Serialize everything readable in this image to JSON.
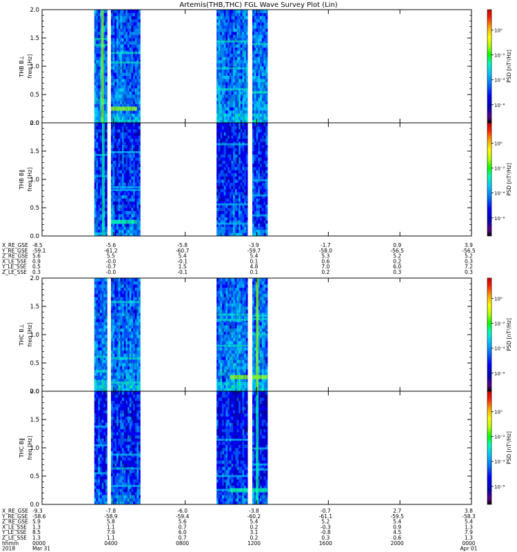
{
  "title": "Artemis(THB,THC) FGL Wave Survey Plot (Lin)",
  "chart_data": {
    "type": "heatmap",
    "xrange_hours": [
      0,
      24
    ],
    "ylim": [
      0,
      2.0
    ],
    "yticks": [
      0.0,
      0.5,
      1.0,
      1.5,
      2.0
    ],
    "ytick_labels": [
      "0.0",
      "0.5",
      "1.0",
      "1.5",
      "2.0"
    ],
    "colorbar": {
      "label": "PSD [nT²/Hz]",
      "scale": "log",
      "tick_labels": [
        "10⁰",
        "10⁻²",
        "10⁻⁴",
        "10⁻⁶"
      ]
    },
    "panels": [
      {
        "id": "thb-bperp",
        "probe": "THB B⊥",
        "ylabel": "freq [Hz]",
        "data_windows_hours": [
          [
            2.92,
            3.65
          ],
          [
            3.85,
            5.5
          ],
          [
            9.75,
            11.5
          ],
          [
            11.75,
            12.6
          ]
        ],
        "features": [
          {
            "type": "vertical-band",
            "hours": [
              3.3,
              3.45
            ],
            "level": "high"
          },
          {
            "type": "horizontal-line",
            "freq": 0.25,
            "hours": [
              3.85,
              5.3
            ],
            "level": "high"
          }
        ]
      },
      {
        "id": "thb-bpar",
        "probe": "THB B‖",
        "ylabel": "freq [Hz]",
        "data_windows_hours": [
          [
            2.92,
            3.65
          ],
          [
            3.85,
            5.5
          ],
          [
            9.75,
            11.5
          ],
          [
            11.75,
            12.6
          ]
        ],
        "features": [
          {
            "type": "vertical-band",
            "hours": [
              3.35,
              3.5
            ],
            "level": "medium"
          },
          {
            "type": "horizontal-line",
            "freq": 0.25,
            "hours": [
              3.85,
              5.3
            ],
            "level": "medium"
          }
        ]
      },
      {
        "id": "thc-bperp",
        "probe": "THC B⊥",
        "ylabel": "freq [Hz]",
        "data_windows_hours": [
          [
            2.92,
            3.65
          ],
          [
            3.85,
            5.5
          ],
          [
            9.75,
            11.5
          ],
          [
            11.75,
            12.6
          ]
        ],
        "features": [
          {
            "type": "vertical-band",
            "hours": [
              11.95,
              12.1
            ],
            "level": "high"
          },
          {
            "type": "horizontal-line",
            "freq": 0.25,
            "hours": [
              10.5,
              12.6
            ],
            "level": "high"
          }
        ]
      },
      {
        "id": "thc-bpar",
        "probe": "THC B‖",
        "ylabel": "freq [Hz]",
        "data_windows_hours": [
          [
            2.92,
            3.65
          ],
          [
            3.85,
            5.5
          ],
          [
            9.75,
            11.5
          ],
          [
            11.75,
            12.6
          ]
        ],
        "features": [
          {
            "type": "vertical-band",
            "hours": [
              11.95,
              12.1
            ],
            "level": "medium"
          },
          {
            "type": "horizontal-line",
            "freq": 0.25,
            "hours": [
              10.5,
              12.6
            ],
            "level": "medium"
          }
        ]
      }
    ],
    "ephemeris": [
      {
        "rows": [
          {
            "label": "X_RE_GSE",
            "values": [
              "-8.5",
              "-5.6",
              "-5.8",
              "-3.9",
              "-1.7",
              "0.9",
              "3.9"
            ]
          },
          {
            "label": "Y_RE_GSE",
            "values": [
              "-59.1",
              "-61.2",
              "-60.7",
              "-59.7",
              "-58.0",
              "-56.5",
              "-56.5"
            ]
          },
          {
            "label": "Z_RE_GSE",
            "values": [
              "5.6",
              "5.5",
              "5.4",
              "5.4",
              "5.3",
              "5.2",
              "5.2"
            ]
          },
          {
            "label": "X_LE_SSE",
            "values": [
              "0.9",
              "-0.0",
              "-0.1",
              "0.1",
              "0.6",
              "0.2",
              "0.3"
            ]
          },
          {
            "label": "Y_LE_SSE",
            "values": [
              "0.5",
              "-0.7",
              "1.5",
              "4.8",
              "7.0",
              "6.0",
              "7.2"
            ]
          },
          {
            "label": "Z_LE_SSE",
            "values": [
              "0.3",
              "-0.0",
              "-0.1",
              "0.1",
              "0.2",
              "0.3",
              "0.3"
            ]
          }
        ]
      },
      {
        "rows": [
          {
            "label": "X_RE_GSE",
            "values": [
              "-9.3",
              "-7.8",
              "-6.0",
              "-3.8",
              "-0.7",
              "2.7",
              "3.8"
            ]
          },
          {
            "label": "Y_RE_GSE",
            "values": [
              "-58.6",
              "-58.9",
              "-59.4",
              "-60.2",
              "-61.1",
              "-59.5",
              "-58.3"
            ]
          },
          {
            "label": "Z_RE_GSE",
            "values": [
              "5.9",
              "5.8",
              "5.6",
              "5.4",
              "5.2",
              "5.4",
              "5.4"
            ]
          },
          {
            "label": "X_LE_SSE",
            "values": [
              "1.3",
              "1.1",
              "0.7",
              "0.2",
              "-0.3",
              "0.9",
              "1.3"
            ]
          },
          {
            "label": "Y_LE_SSE",
            "values": [
              "8.5",
              "7.9",
              "6.0",
              "3.1",
              "-0.8",
              "4.5",
              "7.9"
            ]
          },
          {
            "label": "Z_LE_SSE",
            "values": [
              "1.3",
              "1.1",
              "0.7",
              "0.2",
              "0.3",
              "0.6",
              "1.3"
            ]
          }
        ]
      }
    ],
    "time_axis": {
      "hhmm_label": "hhmm",
      "hhmm": [
        "0000",
        "0400",
        "0800",
        "1200",
        "1600",
        "2000",
        "0000"
      ],
      "date_label": "2018",
      "dates": [
        "Mar 31",
        "",
        "",
        "",
        "",
        "",
        "Apr 01"
      ]
    },
    "colors": {
      "colormap": [
        "#000000",
        "#5a0082",
        "#0000b0",
        "#0000ff",
        "#0070ff",
        "#00c8ff",
        "#00ffb4",
        "#00ff00",
        "#b4ff00",
        "#ffff00",
        "#ffa000",
        "#ff2000",
        "#c80000"
      ],
      "background": "#ffffff",
      "frame": "#000000"
    }
  }
}
